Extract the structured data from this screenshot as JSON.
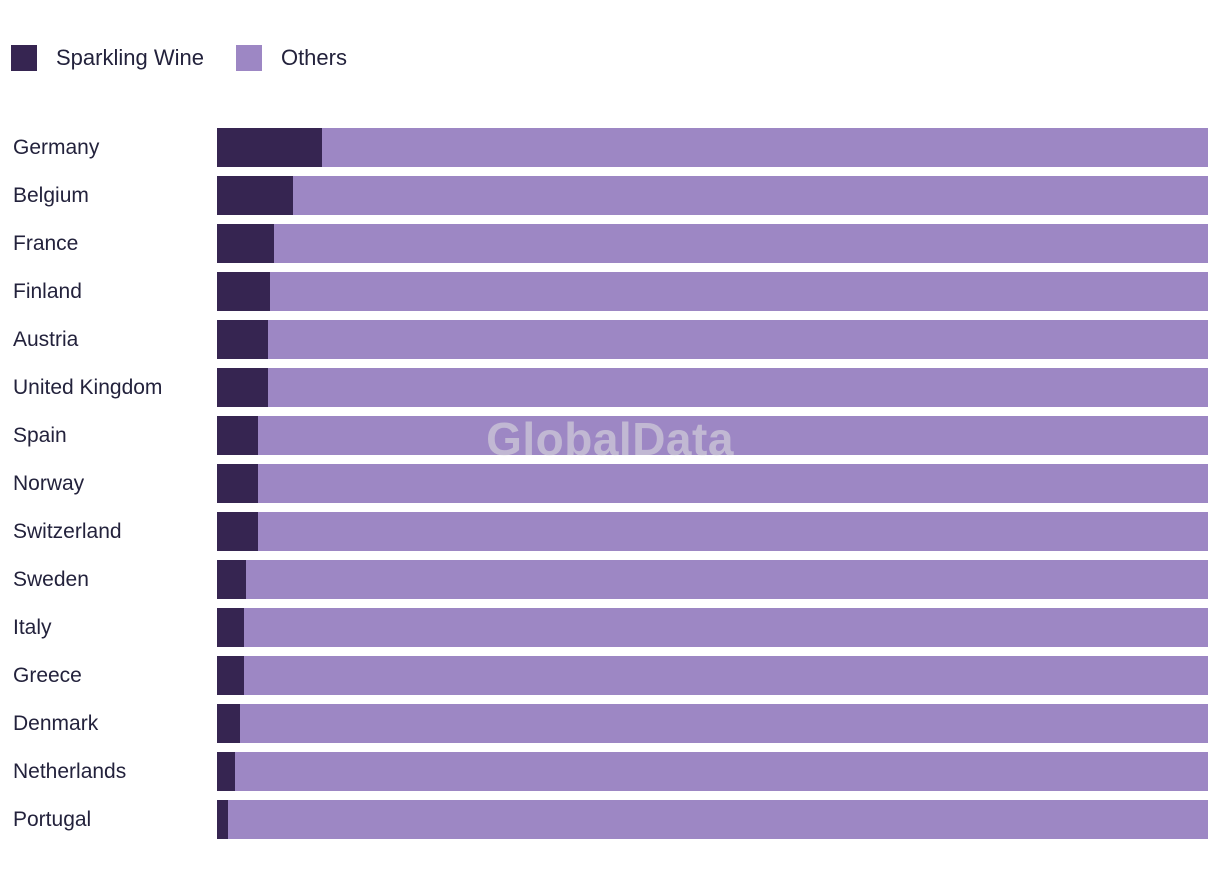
{
  "legend": {
    "items": [
      {
        "label": "Sparkling Wine",
        "color": "#362551"
      },
      {
        "label": "Others",
        "color": "#9D87C4"
      }
    ]
  },
  "watermark": {
    "text": "GlobalData"
  },
  "colors": {
    "sparkling_wine": "#362551",
    "others": "#9D87C4",
    "label_text": "#23223C",
    "background": "#FFFFFF"
  },
  "chart_data": {
    "type": "bar",
    "orientation": "horizontal",
    "stacked": true,
    "normalized_to_100_percent": true,
    "title": "",
    "xlabel": "",
    "ylabel": "",
    "xlim": [
      0,
      100
    ],
    "grid": false,
    "legend_position": "top-left",
    "categories": [
      "Germany",
      "Belgium",
      "France",
      "Finland",
      "Austria",
      "United Kingdom",
      "Spain",
      "Norway",
      "Switzerland",
      "Sweden",
      "Italy",
      "Greece",
      "Denmark",
      "Netherlands",
      "Portugal"
    ],
    "series": [
      {
        "name": "Sparkling Wine",
        "color": "#362551",
        "values": [
          10.6,
          7.7,
          5.8,
          5.3,
          5.1,
          5.1,
          4.1,
          4.1,
          4.1,
          2.9,
          2.7,
          2.7,
          2.3,
          1.8,
          1.1
        ]
      },
      {
        "name": "Others",
        "color": "#9D87C4",
        "values": [
          89.4,
          92.3,
          94.2,
          94.7,
          94.9,
          94.9,
          95.9,
          95.9,
          95.9,
          97.1,
          97.3,
          97.3,
          97.7,
          98.2,
          98.9
        ]
      }
    ]
  }
}
